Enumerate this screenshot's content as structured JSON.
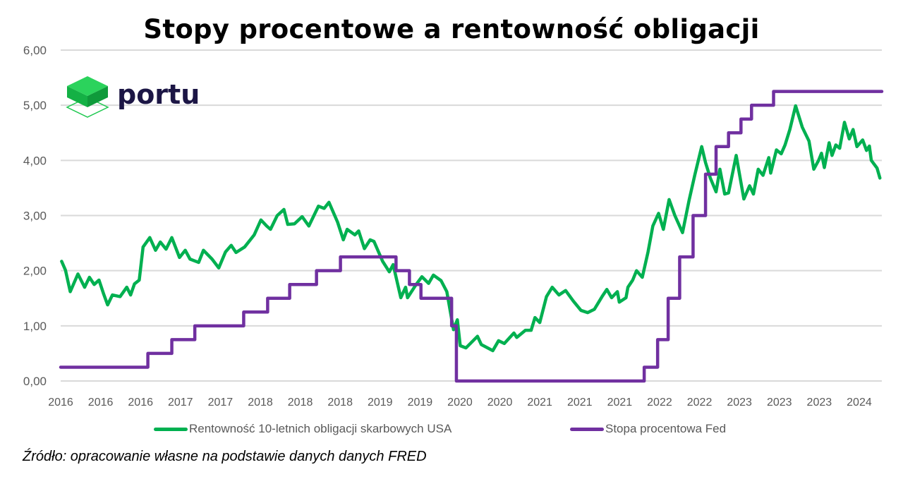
{
  "chart_data": {
    "type": "line",
    "title": "Stopy procentowe a rentowność obligacji",
    "xlabel": "",
    "ylabel": "",
    "xlim": [
      2016.0,
      2024.57
    ],
    "ylim": [
      0,
      6
    ],
    "y_ticks": [
      "0,00",
      "1,00",
      "2,00",
      "3,00",
      "4,00",
      "5,00",
      "6,00"
    ],
    "x_tick_labels": [
      "2016",
      "2016",
      "2016",
      "2017",
      "2017",
      "2018",
      "2018",
      "2018",
      "2019",
      "2019",
      "2020",
      "2020",
      "2021",
      "2021",
      "2021",
      "2022",
      "2022",
      "2023",
      "2023",
      "2023",
      "2024"
    ],
    "x_tick_start": 2016.0,
    "x_tick_step_years": 0.4167,
    "grid": true,
    "legend_position": "bottom",
    "series": [
      {
        "name": "Rentowność 10-letnich obligacji skarbowych USA",
        "color": "#00b050",
        "x": [
          2016.01,
          2016.05,
          2016.1,
          2016.18,
          2016.25,
          2016.3,
          2016.35,
          2016.4,
          2016.45,
          2016.49,
          2016.54,
          2016.62,
          2016.69,
          2016.73,
          2016.77,
          2016.82,
          2016.86,
          2016.93,
          2016.99,
          2017.04,
          2017.1,
          2017.16,
          2017.24,
          2017.3,
          2017.35,
          2017.44,
          2017.49,
          2017.58,
          2017.65,
          2017.72,
          2017.78,
          2017.83,
          2017.92,
          2018.02,
          2018.09,
          2018.15,
          2018.19,
          2018.26,
          2018.33,
          2018.37,
          2018.44,
          2018.52,
          2018.59,
          2018.69,
          2018.75,
          2018.8,
          2018.89,
          2018.95,
          2018.99,
          2019.07,
          2019.11,
          2019.17,
          2019.23,
          2019.27,
          2019.36,
          2019.43,
          2019.47,
          2019.55,
          2019.6,
          2019.62,
          2019.71,
          2019.77,
          2019.84,
          2019.89,
          2019.97,
          2020.03,
          2020.1,
          2020.14,
          2020.17,
          2020.23,
          2020.35,
          2020.39,
          2020.51,
          2020.57,
          2020.63,
          2020.73,
          2020.76,
          2020.85,
          2020.91,
          2020.95,
          2021.0,
          2021.07,
          2021.13,
          2021.2,
          2021.27,
          2021.35,
          2021.43,
          2021.5,
          2021.57,
          2021.65,
          2021.7,
          2021.75,
          2021.81,
          2021.83,
          2021.9,
          2021.92,
          2021.97,
          2022.01,
          2022.07,
          2022.13,
          2022.18,
          2022.24,
          2022.29,
          2022.35,
          2022.41,
          2022.49,
          2022.56,
          2022.62,
          2022.69,
          2022.73,
          2022.78,
          2022.84,
          2022.88,
          2022.93,
          2022.97,
          2023.05,
          2023.13,
          2023.19,
          2023.23,
          2023.28,
          2023.33,
          2023.39,
          2023.41,
          2023.47,
          2023.52,
          2023.56,
          2023.61,
          2023.67,
          2023.74,
          2023.81,
          2023.86,
          2023.91,
          2023.94,
          2023.97,
          2024.02,
          2024.05,
          2024.09,
          2024.13,
          2024.18,
          2024.23,
          2024.27,
          2024.31,
          2024.37,
          2024.41,
          2024.44,
          2024.46,
          2024.52,
          2024.55
        ],
        "values": [
          2.17,
          2.01,
          1.62,
          1.94,
          1.7,
          1.88,
          1.75,
          1.83,
          1.57,
          1.38,
          1.56,
          1.53,
          1.7,
          1.56,
          1.76,
          1.83,
          2.43,
          2.6,
          2.37,
          2.52,
          2.39,
          2.6,
          2.24,
          2.37,
          2.21,
          2.15,
          2.37,
          2.21,
          2.05,
          2.34,
          2.46,
          2.33,
          2.43,
          2.65,
          2.92,
          2.81,
          2.75,
          3.0,
          3.11,
          2.84,
          2.85,
          2.98,
          2.81,
          3.17,
          3.13,
          3.24,
          2.88,
          2.56,
          2.75,
          2.65,
          2.72,
          2.4,
          2.56,
          2.53,
          2.17,
          1.98,
          2.11,
          1.51,
          1.7,
          1.51,
          1.75,
          1.89,
          1.77,
          1.92,
          1.82,
          1.62,
          0.93,
          1.11,
          0.64,
          0.6,
          0.81,
          0.66,
          0.55,
          0.73,
          0.68,
          0.87,
          0.79,
          0.92,
          0.92,
          1.15,
          1.06,
          1.53,
          1.7,
          1.56,
          1.64,
          1.45,
          1.28,
          1.24,
          1.3,
          1.53,
          1.66,
          1.51,
          1.62,
          1.43,
          1.51,
          1.7,
          1.83,
          2.0,
          1.88,
          2.34,
          2.81,
          3.04,
          2.75,
          3.29,
          3.0,
          2.69,
          3.29,
          3.75,
          4.25,
          3.96,
          3.68,
          3.43,
          3.84,
          3.39,
          3.41,
          4.09,
          3.3,
          3.54,
          3.39,
          3.84,
          3.73,
          4.05,
          3.77,
          4.19,
          4.12,
          4.28,
          4.56,
          4.99,
          4.6,
          4.35,
          3.84,
          4.0,
          4.13,
          3.87,
          4.32,
          4.09,
          4.28,
          4.22,
          4.69,
          4.39,
          4.56,
          4.25,
          4.37,
          4.18,
          4.26,
          4.0,
          3.86,
          3.68
        ]
      },
      {
        "name": "Stopa procentowa Fed",
        "color": "#7030a0",
        "step": true,
        "x": [
          2016.0,
          2016.91,
          2017.16,
          2017.4,
          2017.91,
          2018.16,
          2018.39,
          2018.67,
          2018.92,
          2019.5,
          2019.64,
          2019.76,
          2020.08,
          2020.13,
          2022.09,
          2022.23,
          2022.34,
          2022.46,
          2022.6,
          2022.73,
          2022.84,
          2022.97,
          2023.1,
          2023.21,
          2023.44,
          2024.57
        ],
        "values": [
          0.25,
          0.5,
          0.75,
          1.0,
          1.25,
          1.5,
          1.75,
          2.0,
          2.25,
          2.0,
          1.75,
          1.5,
          1.0,
          0.0,
          0.25,
          0.75,
          1.5,
          2.25,
          3.0,
          3.75,
          4.25,
          4.5,
          4.75,
          5.0,
          5.25,
          5.25
        ]
      }
    ]
  },
  "legend": {
    "green_label": "Rentowność 10-letnich obligacji skarbowych USA",
    "purple_label": "Stopa procentowa Fed"
  },
  "source": "Źródło: opracowanie własne na podstawie danych danych FRED",
  "logo": {
    "text": "portu",
    "color": "#1c1645",
    "accent": "#1ec84f"
  }
}
